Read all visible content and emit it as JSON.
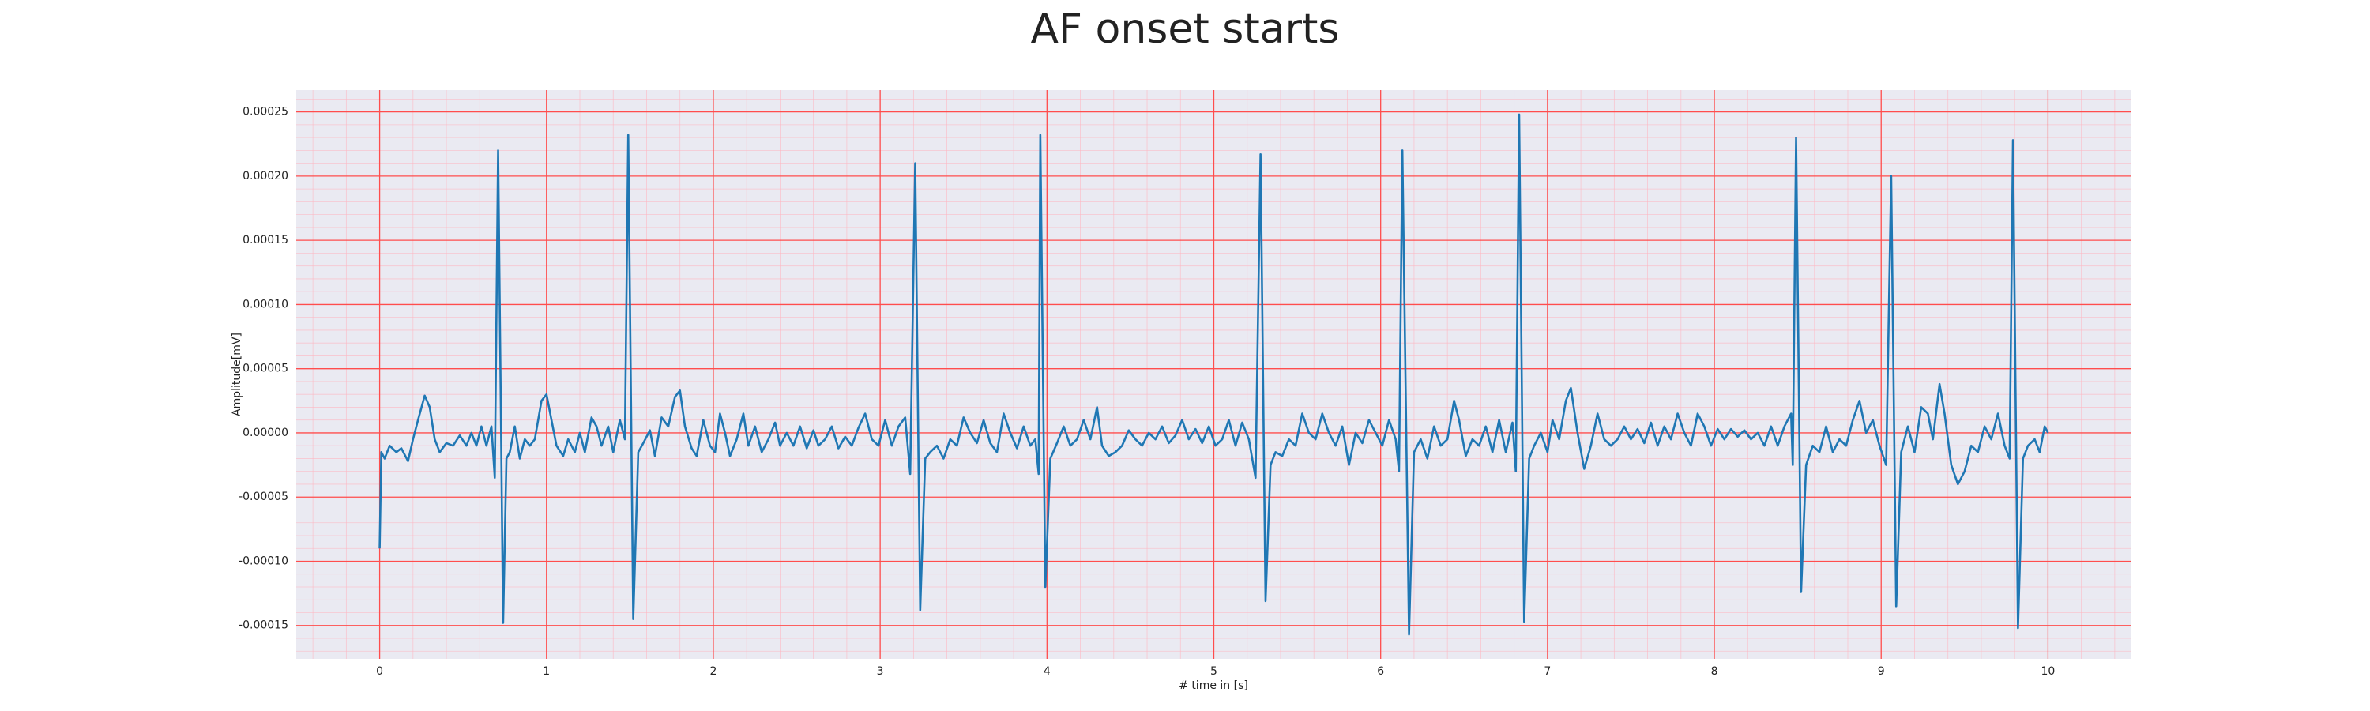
{
  "chart_data": {
    "type": "line",
    "title": "AF onset starts",
    "xlabel": "# time in [s]",
    "ylabel": "Amplitude[mV]",
    "xlim": [
      -0.5,
      10.5
    ],
    "ylim": [
      -0.000176,
      0.000267
    ],
    "xticks": [
      0,
      1,
      2,
      3,
      4,
      5,
      6,
      7,
      8,
      9,
      10
    ],
    "yticks": [
      -0.00015,
      {
        "value": -0.0001,
        "label": "-0.00010"
      },
      -5e-05,
      {
        "value": 0,
        "label": "0.00000"
      },
      5e-05,
      {
        "value": 0.0001,
        "label": "0.00010"
      },
      0.00015,
      {
        "value": 0.0002,
        "label": "0.00020"
      },
      0.00025
    ],
    "grid": true,
    "minor_grid": true,
    "series": [
      {
        "color": "#1f77b4",
        "x": [
          0,
          0.01,
          0.03,
          0.06,
          0.1,
          0.13,
          0.17,
          0.2,
          0.23,
          0.27,
          0.3,
          0.33,
          0.36,
          0.4,
          0.44,
          0.48,
          0.52,
          0.55,
          0.58,
          0.61,
          0.64,
          0.67,
          0.69,
          0.71,
          0.74,
          0.76,
          0.78,
          0.81,
          0.84,
          0.87,
          0.9,
          0.93,
          0.97,
          1.0,
          1.03,
          1.06,
          1.1,
          1.13,
          1.17,
          1.2,
          1.23,
          1.27,
          1.3,
          1.33,
          1.37,
          1.4,
          1.44,
          1.47,
          1.49,
          1.52,
          1.55,
          1.58,
          1.62,
          1.65,
          1.69,
          1.73,
          1.77,
          1.8,
          1.83,
          1.87,
          1.9,
          1.94,
          1.98,
          2.01,
          2.04,
          2.07,
          2.1,
          2.14,
          2.18,
          2.21,
          2.25,
          2.29,
          2.33,
          2.37,
          2.4,
          2.44,
          2.48,
          2.52,
          2.56,
          2.6,
          2.63,
          2.67,
          2.71,
          2.75,
          2.79,
          2.83,
          2.87,
          2.91,
          2.95,
          2.99,
          3.03,
          3.07,
          3.11,
          3.15,
          3.18,
          3.21,
          3.24,
          3.27,
          3.3,
          3.34,
          3.38,
          3.42,
          3.46,
          3.5,
          3.54,
          3.58,
          3.62,
          3.66,
          3.7,
          3.74,
          3.78,
          3.82,
          3.86,
          3.9,
          3.93,
          3.95,
          3.96,
          3.99,
          4.02,
          4.06,
          4.1,
          4.14,
          4.18,
          4.22,
          4.26,
          4.3,
          4.33,
          4.37,
          4.41,
          4.45,
          4.49,
          4.53,
          4.57,
          4.61,
          4.65,
          4.69,
          4.73,
          4.77,
          4.81,
          4.85,
          4.89,
          4.93,
          4.97,
          5.01,
          5.05,
          5.09,
          5.13,
          5.17,
          5.21,
          5.25,
          5.28,
          5.31,
          5.34,
          5.37,
          5.41,
          5.45,
          5.49,
          5.53,
          5.57,
          5.61,
          5.65,
          5.69,
          5.73,
          5.77,
          5.81,
          5.85,
          5.89,
          5.93,
          5.97,
          6.01,
          6.05,
          6.09,
          6.11,
          6.13,
          6.17,
          6.2,
          6.24,
          6.28,
          6.32,
          6.36,
          6.4,
          6.44,
          6.47,
          6.51,
          6.55,
          6.59,
          6.63,
          6.67,
          6.71,
          6.75,
          6.79,
          6.81,
          6.83,
          6.86,
          6.89,
          6.92,
          6.96,
          7.0,
          7.03,
          7.07,
          7.11,
          7.14,
          7.18,
          7.22,
          7.26,
          7.3,
          7.34,
          7.38,
          7.42,
          7.46,
          7.5,
          7.54,
          7.58,
          7.62,
          7.66,
          7.7,
          7.74,
          7.78,
          7.82,
          7.86,
          7.9,
          7.94,
          7.98,
          8.02,
          8.06,
          8.1,
          8.14,
          8.18,
          8.22,
          8.26,
          8.3,
          8.34,
          8.38,
          8.42,
          8.46,
          8.47,
          8.49,
          8.52,
          8.55,
          8.59,
          8.63,
          8.67,
          8.71,
          8.75,
          8.79,
          8.83,
          8.87,
          8.91,
          8.95,
          8.99,
          9.03,
          9.06,
          9.09,
          9.12,
          9.16,
          9.2,
          9.24,
          9.28,
          9.31,
          9.35,
          9.38,
          9.42,
          9.46,
          9.5,
          9.54,
          9.58,
          9.62,
          9.66,
          9.7,
          9.74,
          9.77,
          9.79,
          9.82,
          9.85,
          9.88,
          9.92,
          9.95,
          9.98,
          10.0
        ],
        "values": [
          -9e-05,
          -1.5e-05,
          -2e-05,
          -1e-05,
          -1.5e-05,
          -1.2e-05,
          -2.2e-05,
          -5e-06,
          1e-05,
          2.9e-05,
          2e-05,
          -5e-06,
          -1.5e-05,
          -8e-06,
          -1e-05,
          -2e-06,
          -1e-05,
          0,
          -1e-05,
          5e-06,
          -1e-05,
          5e-06,
          -3.5e-05,
          0.00022,
          -0.000148,
          -2e-05,
          -1.5e-05,
          5e-06,
          -2e-05,
          -5e-06,
          -1e-05,
          -5e-06,
          2.5e-05,
          3e-05,
          1e-05,
          -1e-05,
          -1.8e-05,
          -5e-06,
          -1.5e-05,
          0,
          -1.5e-05,
          1.2e-05,
          5e-06,
          -1e-05,
          5e-06,
          -1.5e-05,
          1e-05,
          -5e-06,
          0.000232,
          -0.000145,
          -1.5e-05,
          -8e-06,
          2e-06,
          -1.8e-05,
          1.2e-05,
          5e-06,
          2.8e-05,
          3.3e-05,
          5e-06,
          -1.2e-05,
          -1.8e-05,
          1e-05,
          -1e-05,
          -1.5e-05,
          1.5e-05,
          0,
          -1.8e-05,
          -5e-06,
          1.5e-05,
          -1e-05,
          5e-06,
          -1.5e-05,
          -5e-06,
          8e-06,
          -1e-05,
          0,
          -1e-05,
          5e-06,
          -1.2e-05,
          2e-06,
          -1e-05,
          -5e-06,
          5e-06,
          -1.2e-05,
          -3e-06,
          -1e-05,
          4e-06,
          1.5e-05,
          -5e-06,
          -1e-05,
          1e-05,
          -1e-05,
          5e-06,
          1.2e-05,
          -3.2e-05,
          0.00021,
          -0.000138,
          -2e-05,
          -1.5e-05,
          -1e-05,
          -2e-05,
          -5e-06,
          -1e-05,
          1.2e-05,
          0,
          -8e-06,
          1e-05,
          -8e-06,
          -1.5e-05,
          1.5e-05,
          0,
          -1.2e-05,
          5e-06,
          -1e-05,
          -5e-06,
          -3.2e-05,
          0.000232,
          -0.00012,
          -2e-05,
          -8e-06,
          5e-06,
          -1e-05,
          -5e-06,
          1e-05,
          -5e-06,
          2e-05,
          -1e-05,
          -1.8e-05,
          -1.5e-05,
          -1e-05,
          2e-06,
          -5e-06,
          -1e-05,
          0,
          -5e-06,
          5e-06,
          -8e-06,
          -2e-06,
          1e-05,
          -5e-06,
          3e-06,
          -8e-06,
          5e-06,
          -1e-05,
          -5e-06,
          1e-05,
          -1e-05,
          8e-06,
          -5e-06,
          -3.5e-05,
          0.000217,
          -0.000131,
          -2.5e-05,
          -1.5e-05,
          -1.8e-05,
          -5e-06,
          -1e-05,
          1.5e-05,
          0,
          -5e-06,
          1.5e-05,
          0,
          -1e-05,
          5e-06,
          -2.5e-05,
          0,
          -8e-06,
          1e-05,
          0,
          -1e-05,
          1e-05,
          -5e-06,
          -3e-05,
          0.00022,
          -0.000157,
          -1.5e-05,
          -5e-06,
          -2e-05,
          5e-06,
          -1e-05,
          -5e-06,
          2.5e-05,
          1e-05,
          -1.8e-05,
          -5e-06,
          -1e-05,
          5e-06,
          -1.5e-05,
          1e-05,
          -1.5e-05,
          8e-06,
          -3e-05,
          0.000248,
          -0.000147,
          -2e-05,
          -1e-05,
          0,
          -1.5e-05,
          1e-05,
          -5e-06,
          2.5e-05,
          3.5e-05,
          0,
          -2.8e-05,
          -1e-05,
          1.5e-05,
          -5e-06,
          -1e-05,
          -5e-06,
          5e-06,
          -5e-06,
          3e-06,
          -8e-06,
          8e-06,
          -1e-05,
          5e-06,
          -5e-06,
          1.5e-05,
          0,
          -1e-05,
          1.5e-05,
          5e-06,
          -1e-05,
          3e-06,
          -5e-06,
          3e-06,
          -3e-06,
          2e-06,
          -5e-06,
          0,
          -1e-05,
          5e-06,
          -1e-05,
          5e-06,
          1.5e-05,
          -2.5e-05,
          0.00023,
          -0.000124,
          -2.5e-05,
          -1e-05,
          -1.5e-05,
          5e-06,
          -1.5e-05,
          -5e-06,
          -1e-05,
          1e-05,
          2.5e-05,
          0,
          1e-05,
          -1e-05,
          -2.5e-05,
          0.0002,
          -0.000135,
          -1.5e-05,
          5e-06,
          -1.5e-05,
          2e-05,
          1.5e-05,
          -5e-06,
          3.8e-05,
          1.5e-05,
          -2.5e-05,
          -4e-05,
          -3e-05,
          -1e-05,
          -1.5e-05,
          5e-06,
          -5e-06,
          1.5e-05,
          -1e-05,
          -2e-05,
          0.000228,
          -0.000152,
          -2e-05,
          -1e-05,
          -5e-06,
          -1.5e-05,
          5e-06,
          0
        ]
      }
    ]
  }
}
